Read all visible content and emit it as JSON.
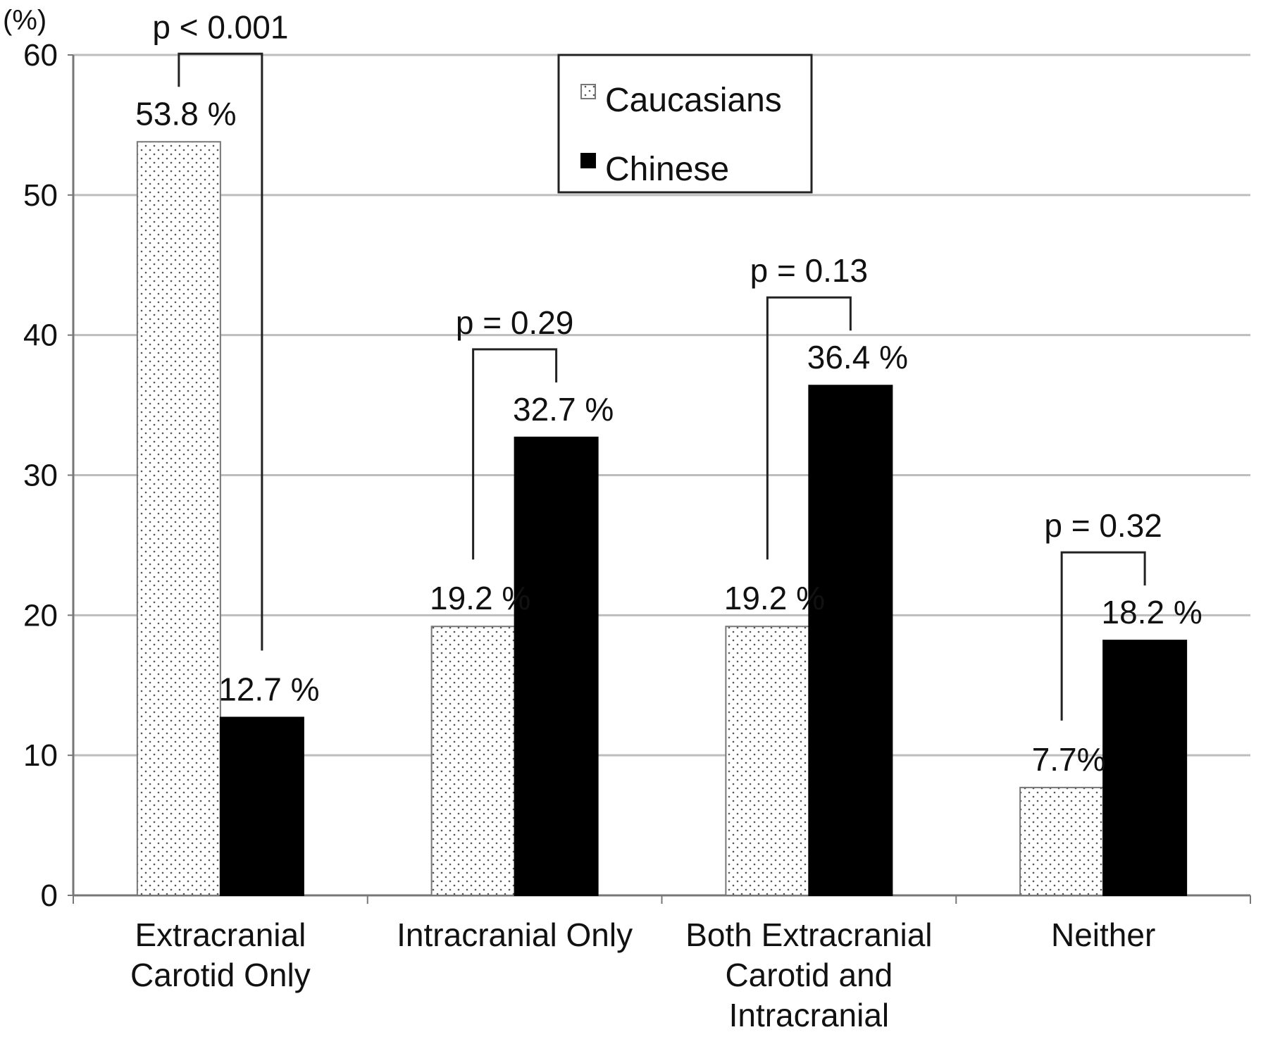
{
  "chart_data": {
    "type": "bar",
    "y_unit_label": "(%)",
    "ylim": [
      0,
      60
    ],
    "y_ticks": [
      0,
      10,
      20,
      30,
      40,
      50,
      60
    ],
    "y_tick_labels": [
      "0",
      "10",
      "20",
      "30",
      "40",
      "50",
      "60"
    ],
    "grid": true,
    "legend_position": "top-center",
    "categories": [
      [
        "Extracranial",
        "Carotid Only"
      ],
      [
        "Intracranial Only"
      ],
      [
        "Both Extracranial",
        "Carotid and",
        "Intracranial"
      ],
      [
        "Neither"
      ]
    ],
    "series": [
      {
        "name": "Caucasians",
        "fill": "dotted-white",
        "values": [
          53.8,
          19.2,
          19.2,
          7.7
        ],
        "labels": [
          "53.8 %",
          "19.2 %",
          "19.2 %",
          "7.7%"
        ]
      },
      {
        "name": "Chinese",
        "fill": "#000000",
        "values": [
          12.7,
          32.7,
          36.4,
          18.2
        ],
        "labels": [
          "12.7 %",
          "32.7 %",
          "36.4 %",
          "18.2 %"
        ]
      }
    ],
    "p_values": [
      "p < 0.001",
      "p = 0.29",
      "p = 0.13",
      "p = 0.32"
    ]
  }
}
